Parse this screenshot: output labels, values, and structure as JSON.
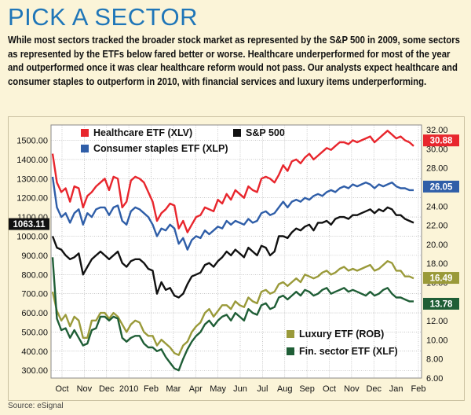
{
  "header": {
    "title": "PICK A SECTOR",
    "intro": "While most sectors tracked the broader stock market as represented by the S&P 500 in 2009, some sectors as represented by the ETFs below fared better or worse. Healthcare underperformed for most of the year and outperformed once it was clear healthcare reform would not pass. Our analysts expect healthcare and consumer staples to outperform in 2010, with financial services and luxury items underperforming."
  },
  "source": "Source: eSignal",
  "colors": {
    "healthcare": "#e8262d",
    "sp500": "#111111",
    "staples": "#2f5ea8",
    "luxury": "#9a9a3a",
    "financial": "#1f5e36",
    "plot_bg": "#ffffff",
    "grid": "#a8a8a8"
  },
  "chart_data": {
    "type": "line",
    "x_labels": [
      "Oct",
      "Nov",
      "Dec",
      "2010",
      "Feb",
      "Mar",
      "Apr",
      "May",
      "Jun",
      "Jul",
      "Aug",
      "Sep",
      "Oct",
      "Nov",
      "Dec",
      "Jan",
      "Feb"
    ],
    "left_axis": {
      "ticks": [
        300,
        400,
        500,
        600,
        700,
        800,
        900,
        1000,
        1100,
        1200,
        1300,
        1400,
        1500
      ],
      "ylim": [
        260,
        1580
      ]
    },
    "right_axis": {
      "ticks": [
        6,
        8,
        10,
        12,
        14,
        16,
        18,
        20,
        22,
        24,
        26,
        28,
        30,
        32
      ],
      "ylim": [
        6,
        32.5
      ]
    },
    "legend_upper": [
      {
        "key": "healthcare",
        "label": "Healthcare ETF (XLV)"
      },
      {
        "key": "sp500",
        "label": "S&P 500"
      },
      {
        "key": "staples",
        "label": "Consumer staples ETF (XLP)"
      }
    ],
    "legend_lower": [
      {
        "key": "luxury",
        "label": "Luxury ETF (ROB)"
      },
      {
        "key": "financial",
        "label": "Fin. sector ETF (XLF)"
      }
    ],
    "end_labels": [
      {
        "key": "sp500",
        "axis": "left",
        "value": 1063.11,
        "text": "1063.11"
      },
      {
        "key": "healthcare",
        "axis": "right",
        "value": 30.88,
        "text": "30.88"
      },
      {
        "key": "staples",
        "axis": "right",
        "value": 26.05,
        "text": "26.05"
      },
      {
        "key": "luxury",
        "axis": "right",
        "value": 16.49,
        "text": "16.49"
      },
      {
        "key": "financial",
        "axis": "right",
        "value": 13.78,
        "text": "13.78"
      }
    ],
    "series": [
      {
        "key": "healthcare",
        "name": "Healthcare ETF (XLV)",
        "axis": "left",
        "values": [
          1430,
          1280,
          1230,
          1250,
          1180,
          1260,
          1250,
          1150,
          1210,
          1230,
          1260,
          1280,
          1300,
          1240,
          1310,
          1300,
          1150,
          1180,
          1290,
          1310,
          1300,
          1280,
          1230,
          1180,
          1080,
          1120,
          1140,
          1170,
          1160,
          1040,
          1080,
          1020,
          1060,
          1100,
          1110,
          1150,
          1140,
          1130,
          1190,
          1170,
          1220,
          1190,
          1240,
          1220,
          1200,
          1260,
          1240,
          1230,
          1300,
          1310,
          1300,
          1280,
          1320,
          1370,
          1340,
          1390,
          1400,
          1380,
          1410,
          1430,
          1400,
          1420,
          1440,
          1460,
          1450,
          1470,
          1490,
          1490,
          1480,
          1500,
          1490,
          1500,
          1510,
          1520,
          1490,
          1510,
          1530,
          1550,
          1530,
          1510,
          1520,
          1500,
          1490,
          1470
        ]
      },
      {
        "key": "staples",
        "name": "Consumer staples ETF (XLP)",
        "axis": "left",
        "values": [
          1310,
          1150,
          1100,
          1120,
          1070,
          1120,
          1140,
          1060,
          1120,
          1100,
          1140,
          1150,
          1150,
          1110,
          1150,
          1160,
          1080,
          1060,
          1130,
          1150,
          1140,
          1120,
          1100,
          1060,
          1000,
          1040,
          1030,
          1060,
          1040,
          960,
          990,
          930,
          980,
          1000,
          990,
          1030,
          1010,
          1030,
          1050,
          1040,
          1080,
          1060,
          1080,
          1070,
          1060,
          1090,
          1070,
          1080,
          1120,
          1130,
          1110,
          1120,
          1150,
          1180,
          1150,
          1180,
          1190,
          1180,
          1200,
          1190,
          1210,
          1220,
          1210,
          1230,
          1240,
          1230,
          1250,
          1260,
          1250,
          1270,
          1260,
          1270,
          1280,
          1270,
          1250,
          1270,
          1260,
          1270,
          1280,
          1260,
          1250,
          1250,
          1240,
          1240
        ]
      },
      {
        "key": "sp500",
        "name": "S&P 500",
        "axis": "left",
        "values": [
          1000,
          940,
          930,
          900,
          880,
          890,
          910,
          800,
          840,
          880,
          900,
          920,
          900,
          880,
          900,
          920,
          860,
          840,
          870,
          880,
          880,
          860,
          830,
          820,
          700,
          760,
          720,
          730,
          690,
          680,
          700,
          750,
          790,
          800,
          810,
          850,
          860,
          840,
          870,
          890,
          920,
          900,
          930,
          910,
          890,
          940,
          920,
          900,
          950,
          940,
          900,
          920,
          1000,
          1000,
          990,
          1020,
          1040,
          1030,
          1050,
          1060,
          1030,
          1070,
          1070,
          1080,
          1060,
          1090,
          1100,
          1100,
          1090,
          1110,
          1110,
          1120,
          1130,
          1140,
          1120,
          1140,
          1130,
          1150,
          1140,
          1110,
          1110,
          1090,
          1080,
          1070
        ]
      },
      {
        "key": "luxury",
        "name": "Luxury ETF (ROB)",
        "axis": "left",
        "values": [
          710,
          610,
          560,
          590,
          530,
          580,
          560,
          470,
          470,
          560,
          560,
          600,
          600,
          570,
          600,
          580,
          540,
          500,
          540,
          560,
          550,
          500,
          480,
          480,
          430,
          460,
          440,
          420,
          390,
          380,
          430,
          450,
          500,
          530,
          550,
          600,
          620,
          580,
          610,
          640,
          640,
          620,
          660,
          640,
          630,
          680,
          660,
          650,
          710,
          720,
          700,
          710,
          750,
          760,
          740,
          760,
          780,
          760,
          800,
          790,
          780,
          790,
          810,
          820,
          800,
          810,
          830,
          840,
          820,
          830,
          820,
          830,
          840,
          850,
          820,
          830,
          850,
          870,
          860,
          820,
          820,
          790,
          790,
          780
        ]
      },
      {
        "key": "financial",
        "name": "Fin. sector ETF (XLF)",
        "axis": "left",
        "values": [
          890,
          570,
          510,
          520,
          470,
          510,
          470,
          430,
          440,
          510,
          520,
          580,
          580,
          560,
          580,
          570,
          470,
          450,
          470,
          480,
          480,
          440,
          420,
          420,
          400,
          410,
          370,
          340,
          310,
          300,
          360,
          410,
          450,
          480,
          500,
          540,
          560,
          530,
          560,
          580,
          590,
          560,
          600,
          580,
          560,
          620,
          600,
          590,
          640,
          650,
          620,
          630,
          680,
          690,
          670,
          690,
          710,
          690,
          720,
          710,
          690,
          700,
          720,
          730,
          700,
          710,
          720,
          730,
          710,
          720,
          710,
          700,
          690,
          710,
          690,
          700,
          720,
          730,
          700,
          680,
          680,
          670,
          660,
          660
        ]
      }
    ]
  }
}
